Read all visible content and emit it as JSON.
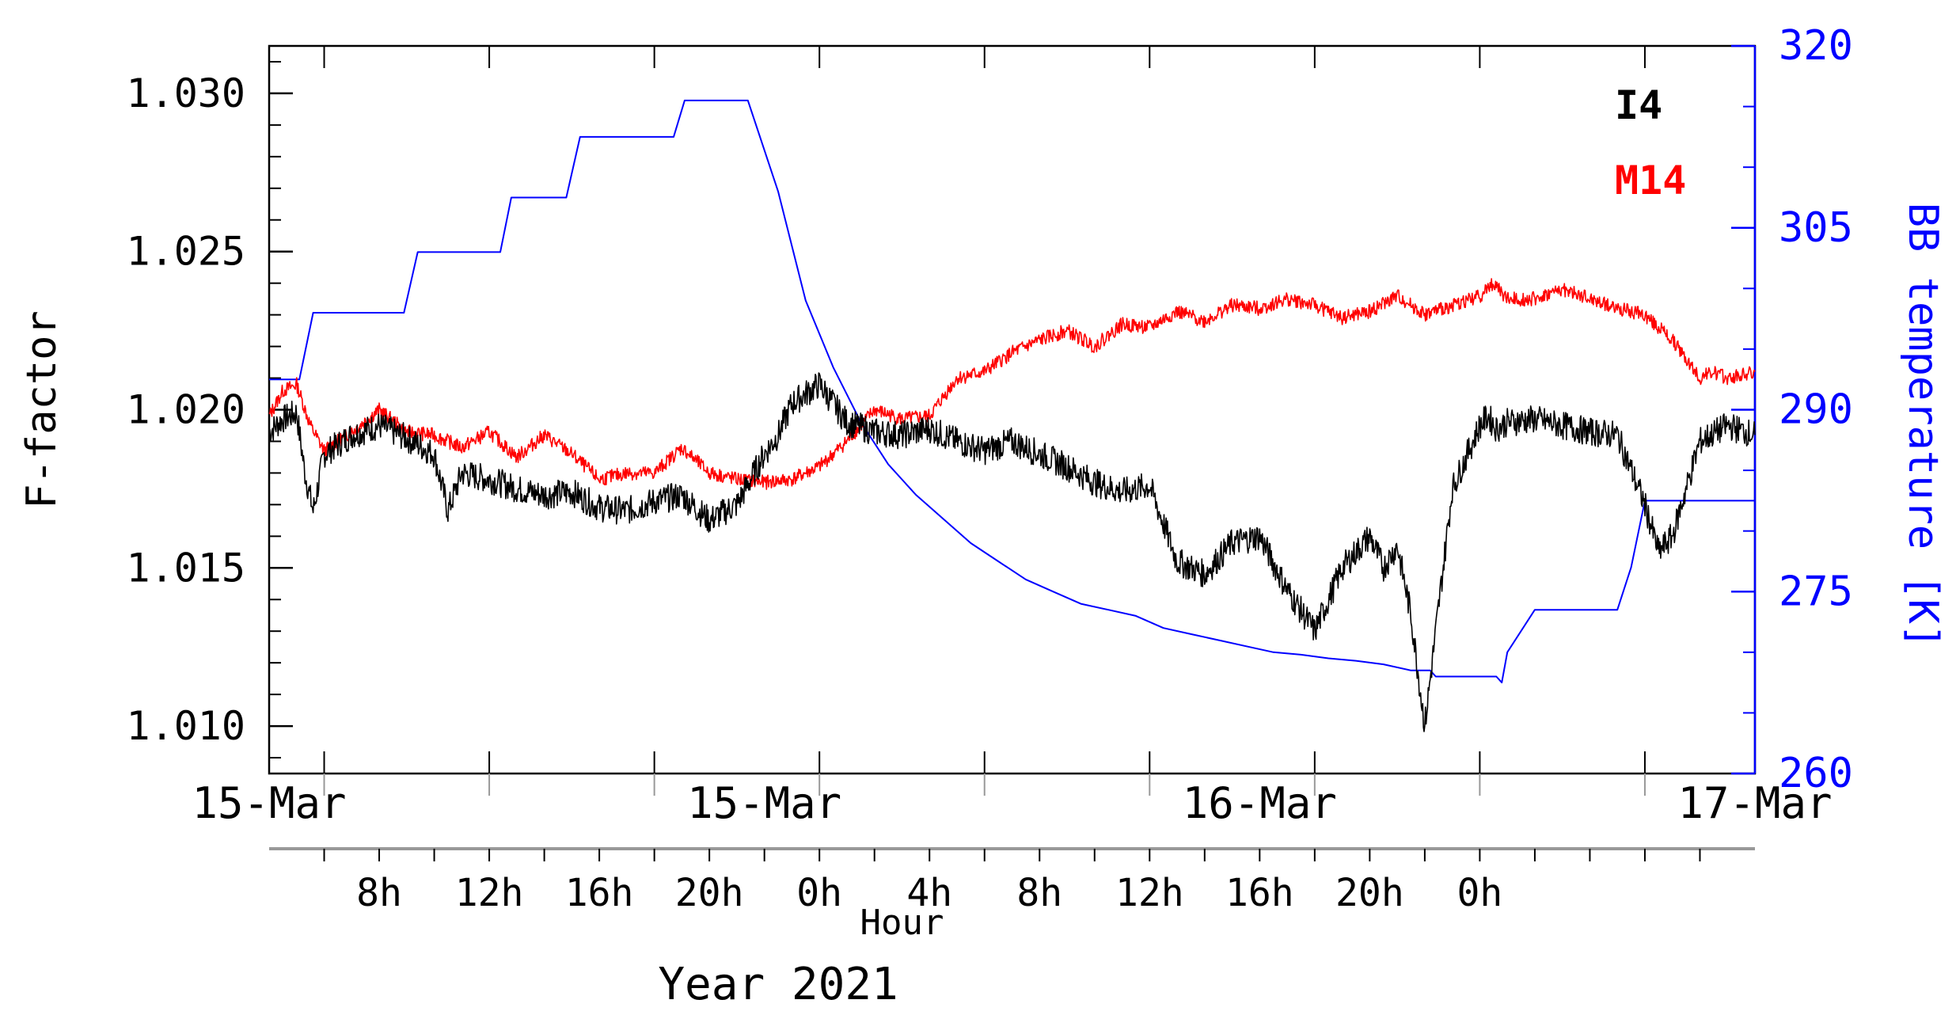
{
  "chart_data": {
    "type": "line",
    "title": "",
    "xlabel_hour": "Hour",
    "xlabel_year": "Year 2021",
    "ylabel_left": "F-factor",
    "ylabel_right": "BB temperature [K]",
    "x_units": "hours since 15-Mar 00:00 (2021)",
    "xlim": [
      4.0,
      58.0
    ],
    "ylim_left": [
      1.0085,
      1.0315
    ],
    "ylim_right": [
      260,
      320
    ],
    "y_ticks_left": [
      "1.010",
      "1.015",
      "1.020",
      "1.025",
      "1.030"
    ],
    "y_ticks_right": [
      "260",
      "275",
      "290",
      "305",
      "320"
    ],
    "date_labels": [
      {
        "label": "15-Mar",
        "x": 4.0
      },
      {
        "label": "15-Mar",
        "x": 22.0
      },
      {
        "label": "16-Mar",
        "x": 40.0
      },
      {
        "label": "17-Mar",
        "x": 58.0
      }
    ],
    "hour_labels": [
      {
        "label": "8h",
        "x": 8
      },
      {
        "label": "12h",
        "x": 12
      },
      {
        "label": "16h",
        "x": 16
      },
      {
        "label": "20h",
        "x": 20
      },
      {
        "label": "0h",
        "x": 24
      },
      {
        "label": "4h",
        "x": 28
      },
      {
        "label": "8h",
        "x": 32
      },
      {
        "label": "12h",
        "x": 36
      },
      {
        "label": "16h",
        "x": 40
      },
      {
        "label": "20h",
        "x": 44
      },
      {
        "label": "0h",
        "x": 48
      }
    ],
    "legend": [
      {
        "name": "I4",
        "color": "#000000"
      },
      {
        "name": "M14",
        "color": "#ff0000"
      }
    ],
    "series": [
      {
        "name": "I4",
        "axis": "left",
        "color": "#000000",
        "x": [
          4.0,
          4.5,
          5.0,
          5.3,
          5.6,
          6.0,
          7.0,
          8.0,
          9.0,
          10.0,
          10.5,
          11.0,
          12.0,
          13.0,
          14.0,
          15.0,
          16.0,
          17.0,
          18.0,
          19.0,
          20.0,
          21.0,
          22.0,
          22.5,
          23.0,
          24.0,
          25.0,
          26.0,
          27.0,
          28.0,
          29.0,
          30.0,
          31.0,
          32.0,
          33.0,
          34.0,
          35.0,
          36.0,
          37.0,
          38.0,
          39.0,
          40.0,
          41.0,
          42.0,
          43.0,
          44.0,
          44.5,
          45.0,
          45.5,
          46.0,
          47.0,
          48.0,
          48.3,
          48.6,
          49.0,
          50.0,
          51.0,
          52.0,
          53.0,
          54.0,
          54.5,
          55.0,
          56.0,
          57.0,
          58.0
        ],
        "y": [
          1.0193,
          1.0197,
          1.0199,
          1.018,
          1.0168,
          1.0186,
          1.0192,
          1.0195,
          1.0191,
          1.0186,
          1.0168,
          1.018,
          1.0178,
          1.0175,
          1.0173,
          1.0174,
          1.0169,
          1.0168,
          1.0171,
          1.0173,
          1.0165,
          1.017,
          1.0186,
          1.0192,
          1.0202,
          1.0208,
          1.0196,
          1.0193,
          1.0192,
          1.0194,
          1.019,
          1.0187,
          1.019,
          1.0186,
          1.0182,
          1.0177,
          1.0174,
          1.0176,
          1.0152,
          1.0148,
          1.0158,
          1.016,
          1.0143,
          1.013,
          1.015,
          1.016,
          1.015,
          1.0157,
          1.0135,
          1.01,
          1.0175,
          1.0195,
          1.0198,
          1.0194,
          1.0196,
          1.0197,
          1.0195,
          1.0193,
          1.0192,
          1.017,
          1.0155,
          1.016,
          1.019,
          1.0195,
          1.0192
        ]
      },
      {
        "name": "M14",
        "axis": "left",
        "color": "#ff0000",
        "x": [
          4.0,
          4.5,
          5.0,
          5.5,
          6.0,
          6.5,
          7.0,
          8.0,
          9.0,
          10.0,
          11.0,
          12.0,
          13.0,
          14.0,
          15.0,
          16.0,
          17.0,
          18.0,
          19.0,
          20.0,
          21.0,
          22.0,
          23.0,
          24.0,
          25.0,
          26.0,
          27.0,
          28.0,
          29.0,
          30.0,
          31.0,
          32.0,
          33.0,
          34.0,
          35.0,
          36.0,
          37.0,
          38.0,
          39.0,
          40.0,
          41.0,
          42.0,
          43.0,
          44.0,
          45.0,
          46.0,
          47.0,
          48.0,
          48.5,
          49.0,
          50.0,
          51.0,
          52.0,
          53.0,
          54.0,
          55.0,
          56.0,
          56.5,
          57.0,
          58.0
        ],
        "y": [
          1.0198,
          1.0206,
          1.0208,
          1.0195,
          1.0187,
          1.019,
          1.0193,
          1.02,
          1.0193,
          1.0192,
          1.0188,
          1.0193,
          1.0185,
          1.0192,
          1.0186,
          1.0178,
          1.018,
          1.018,
          1.0188,
          1.018,
          1.0178,
          1.0177,
          1.0178,
          1.0182,
          1.019,
          1.02,
          1.0197,
          1.0198,
          1.021,
          1.0212,
          1.0218,
          1.0222,
          1.0225,
          1.022,
          1.0227,
          1.0226,
          1.0231,
          1.0228,
          1.0233,
          1.0232,
          1.0235,
          1.0233,
          1.0229,
          1.0231,
          1.0236,
          1.023,
          1.0233,
          1.0236,
          1.024,
          1.0235,
          1.0235,
          1.0238,
          1.0235,
          1.0232,
          1.023,
          1.0222,
          1.021,
          1.0212,
          1.021,
          1.0212
        ]
      },
      {
        "name": "BB temperature",
        "axis": "right",
        "color": "#0000ff",
        "x": [
          4.0,
          5.1,
          5.6,
          8.9,
          9.4,
          12.4,
          12.8,
          14.8,
          15.3,
          16.9,
          17.3,
          18.7,
          19.1,
          21.0,
          21.4,
          22.5,
          23.5,
          24.5,
          25.5,
          26.5,
          27.5,
          28.5,
          29.5,
          30.5,
          31.5,
          32.5,
          33.5,
          34.5,
          35.5,
          36.5,
          37.5,
          38.5,
          39.5,
          40.5,
          41.5,
          42.5,
          43.5,
          44.5,
          45.5,
          46.2,
          46.4,
          46.6,
          48.6,
          48.8,
          49.0,
          50.0,
          52.0,
          53.0,
          53.5,
          54.0,
          58.0
        ],
        "y": [
          292.5,
          292.5,
          298.0,
          298.0,
          303.0,
          303.0,
          307.5,
          307.5,
          312.5,
          312.5,
          312.5,
          312.5,
          315.5,
          315.5,
          315.5,
          308.0,
          299.0,
          293.5,
          289.0,
          285.5,
          283.0,
          281.0,
          279.0,
          277.5,
          276.0,
          275.0,
          274.0,
          273.5,
          273.0,
          272.0,
          271.5,
          271.0,
          270.5,
          270.0,
          269.8,
          269.5,
          269.3,
          269.0,
          268.5,
          268.5,
          268.0,
          268.0,
          268.0,
          267.5,
          270.0,
          273.5,
          273.5,
          273.5,
          277.0,
          282.5,
          282.5
        ]
      }
    ]
  }
}
